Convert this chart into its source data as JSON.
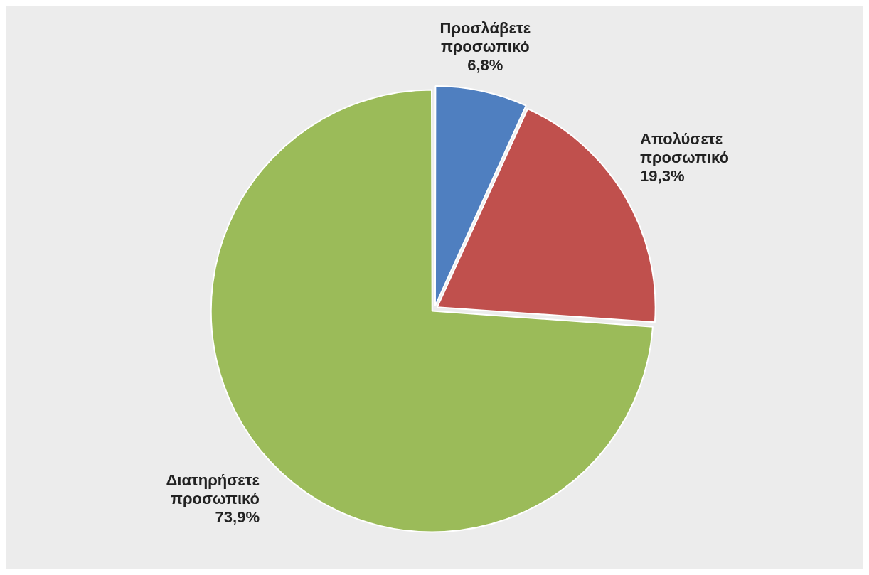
{
  "chart_data": {
    "type": "pie",
    "categories": [
      "Προσλάβετε προσωπικό",
      "Απολύσετε προσωπικό",
      "Διατηρήσετε προσωπικό"
    ],
    "values": [
      6.8,
      19.3,
      73.9
    ],
    "colors": [
      "#4f7fc0",
      "#c0504d",
      "#9bbb59"
    ],
    "value_labels": [
      "6,8%",
      "19,3%",
      "73,9%"
    ],
    "legend": false
  }
}
